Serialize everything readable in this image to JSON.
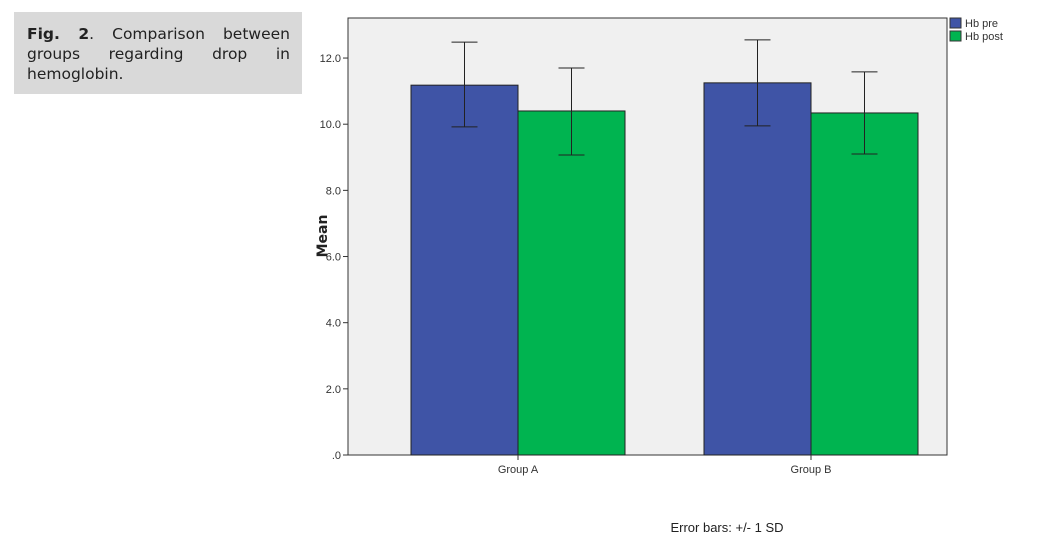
{
  "caption": {
    "label": "Fig. 2",
    "text": ". Comparison between groups regarding drop in hemoglobin."
  },
  "chart_data": {
    "type": "bar",
    "categories": [
      "Group A",
      "Group B"
    ],
    "series": [
      {
        "name": "Hb pre",
        "color": "#3f54a6",
        "values": [
          11.18,
          11.25
        ],
        "error_low": [
          9.92,
          9.95
        ],
        "error_high": [
          12.48,
          12.55
        ]
      },
      {
        "name": "Hb post",
        "color": "#00b450",
        "values": [
          10.4,
          10.34
        ],
        "error_low": [
          9.07,
          9.1
        ],
        "error_high": [
          11.7,
          11.58
        ]
      }
    ],
    "ylabel": "Mean",
    "xlabel": "",
    "ylim": [
      0,
      13.2
    ],
    "yticks": [
      ".0",
      "2.0",
      "4.0",
      "6.0",
      "8.0",
      "10.0",
      "12.0"
    ],
    "ytick_values": [
      0,
      2,
      4,
      6,
      8,
      10,
      12
    ],
    "legend_position": "top-right",
    "footnote": "Error bars: +/- 1 SD",
    "grid": false,
    "plot_background": "#f0f0f0"
  }
}
